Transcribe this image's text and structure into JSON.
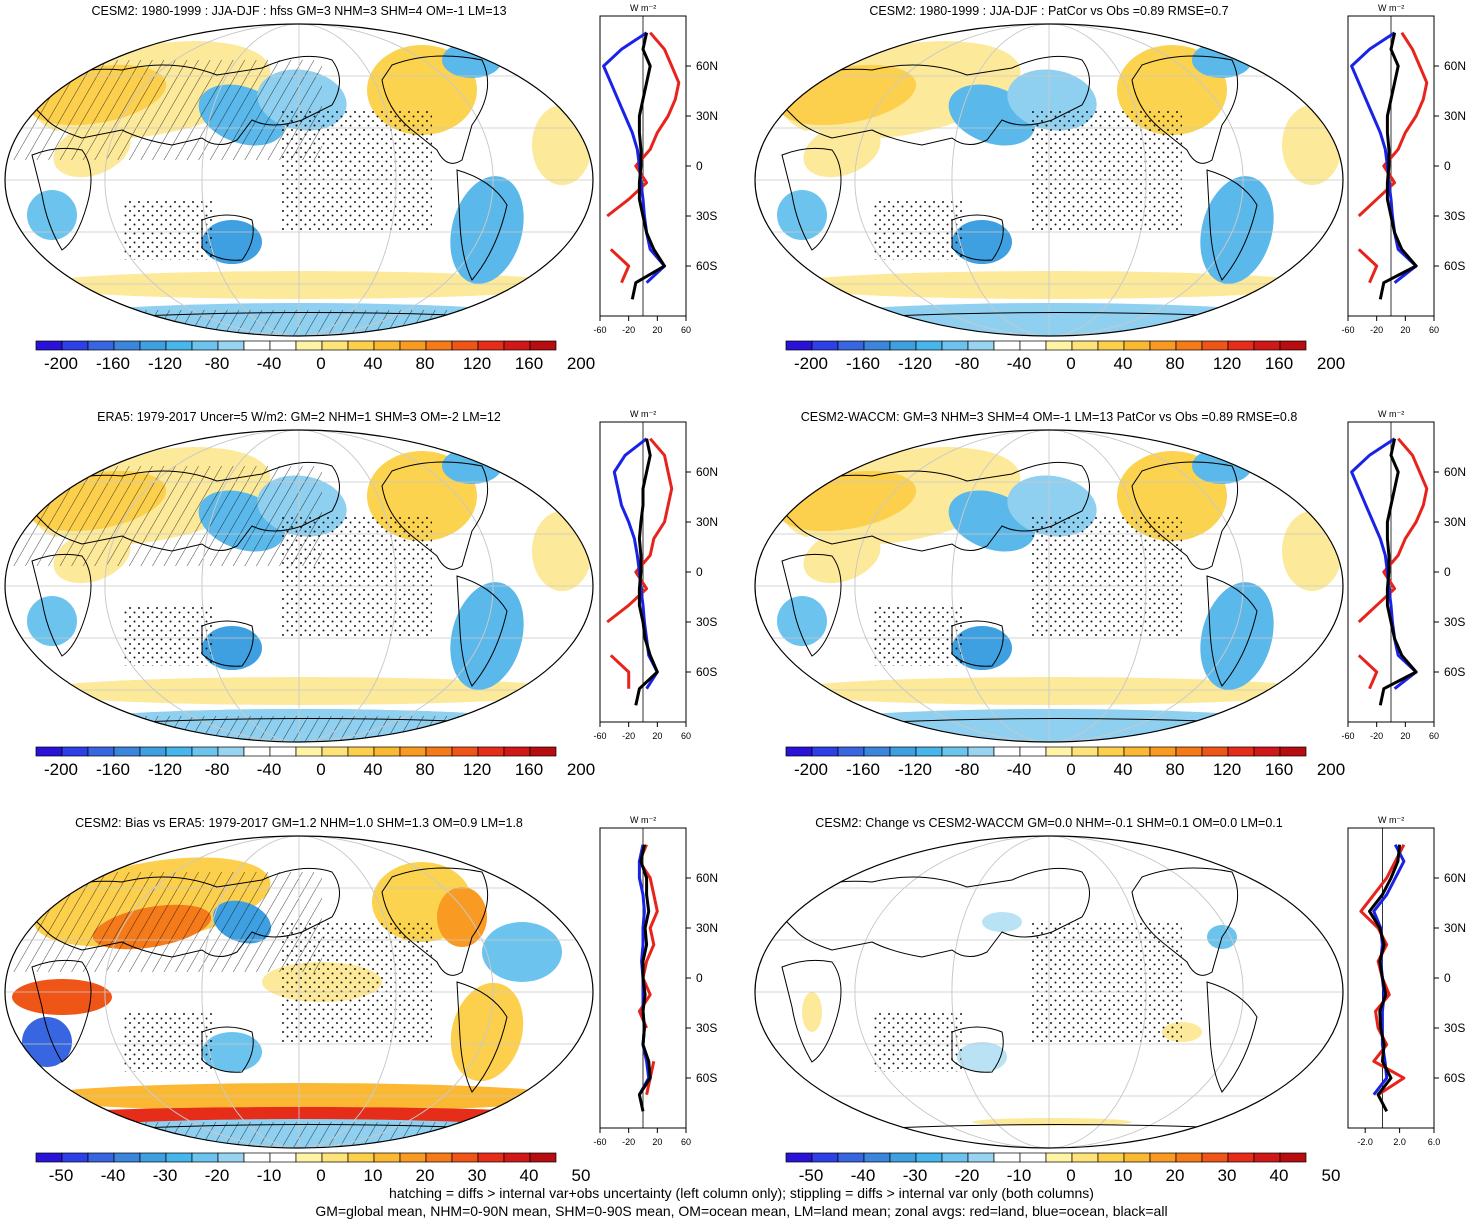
{
  "footer": {
    "line1": "hatching = diffs > internal var+obs uncertainty (left column only); stippling = diffs > internal var only (both columns)",
    "line2": "GM=global mean, NHM=0-90N mean, SHM=0-90S mean, OM=ocean mean, LM=land mean; zonal avgs: red=land, blue=ocean, black=all"
  },
  "zonal_unit": "W m⁻²",
  "lat_labels": [
    "60N",
    "30N",
    "0",
    "30S",
    "60S"
  ],
  "colorbar_colors": [
    "#2a12d8",
    "#2d3fe6",
    "#3766e0",
    "#3b86dc",
    "#3ea0e0",
    "#47b6ec",
    "#6cc4ee",
    "#98d3f0",
    "#ffffff",
    "#ffffff",
    "#fff3a6",
    "#fee27a",
    "#fcd04d",
    "#fbb933",
    "#f99a22",
    "#f57a1a",
    "#f05518",
    "#e52d1a",
    "#d01818",
    "#b70c10"
  ],
  "palette": {
    "land": "#e8231c",
    "ocean": "#1a22e8",
    "all": "#000000",
    "graticule": "#c9c9c9"
  },
  "chart_data": [
    {
      "type": "heatmap",
      "title": "CESM2: 1980-1999 : JJA-DJF : hfss GM=3 NHM=3 SHM=4 OM=-1 LM=13",
      "colorbar_ticks": [
        "-200",
        "-160",
        "-120",
        "-80",
        "-40",
        "0",
        "40",
        "80",
        "120",
        "160",
        "200"
      ],
      "overlay": {
        "hatching": true,
        "stippling": true
      },
      "zonal": {
        "x_ticks": [
          "-60",
          "-20",
          "20",
          "60"
        ],
        "xlim": [
          -60,
          60
        ],
        "ylim": [
          -90,
          90
        ],
        "lat": [
          80,
          70,
          60,
          50,
          40,
          30,
          20,
          10,
          0,
          -10,
          -20,
          -30,
          -40,
          -50,
          -60,
          -70,
          -80
        ],
        "series": [
          {
            "name": "red=land",
            "values": [
              10,
              30,
              40,
              50,
              45,
              35,
              20,
              10,
              -10,
              5,
              -20,
              -50,
              null,
              -45,
              -20,
              -30,
              null
            ]
          },
          {
            "name": "blue=ocean",
            "values": [
              5,
              -30,
              -55,
              -45,
              -35,
              -25,
              -15,
              -8,
              -5,
              -3,
              0,
              2,
              5,
              10,
              30,
              5,
              null
            ]
          },
          {
            "name": "black=all",
            "values": [
              5,
              0,
              10,
              5,
              0,
              -5,
              -5,
              -3,
              -3,
              -5,
              -5,
              0,
              5,
              15,
              30,
              -10,
              -15
            ]
          }
        ]
      }
    },
    {
      "type": "heatmap",
      "title": "CESM2: 1980-1999 : JJA-DJF : PatCor vs Obs =0.89 RMSE=0.7",
      "colorbar_ticks": [
        "-200",
        "-160",
        "-120",
        "-80",
        "-40",
        "0",
        "40",
        "80",
        "120",
        "160",
        "200"
      ],
      "overlay": {
        "hatching": false,
        "stippling": true
      },
      "zonal": {
        "x_ticks": [
          "-60",
          "-20",
          "20",
          "60"
        ],
        "xlim": [
          -60,
          60
        ],
        "ylim": [
          -90,
          90
        ],
        "lat": [
          80,
          70,
          60,
          50,
          40,
          30,
          20,
          10,
          0,
          -10,
          -20,
          -30,
          -40,
          -50,
          -60,
          -70,
          -80
        ],
        "series": [
          {
            "name": "red=land",
            "values": [
              15,
              30,
              40,
              50,
              45,
              35,
              20,
              10,
              -10,
              5,
              -20,
              -45,
              null,
              -45,
              -20,
              -30,
              null
            ]
          },
          {
            "name": "blue=ocean",
            "values": [
              5,
              -30,
              -55,
              -45,
              -35,
              -25,
              -15,
              -8,
              -5,
              -3,
              0,
              2,
              5,
              10,
              35,
              5,
              null
            ]
          },
          {
            "name": "black=all",
            "values": [
              5,
              0,
              10,
              5,
              0,
              -5,
              -5,
              -3,
              -3,
              -5,
              -5,
              0,
              5,
              15,
              35,
              -10,
              -15
            ]
          }
        ]
      }
    },
    {
      "type": "heatmap",
      "title": "ERA5: 1979-2017 Uncer=5 W/m2: GM=2 NHM=1 SHM=3 OM=-2 LM=12",
      "colorbar_ticks": [
        "-200",
        "-160",
        "-120",
        "-80",
        "-40",
        "0",
        "40",
        "80",
        "120",
        "160",
        "200"
      ],
      "overlay": {
        "hatching": true,
        "stippling": true
      },
      "zonal": {
        "x_ticks": [
          "-60",
          "-20",
          "20",
          "60"
        ],
        "xlim": [
          -60,
          60
        ],
        "ylim": [
          -90,
          90
        ],
        "lat": [
          80,
          70,
          60,
          50,
          40,
          30,
          20,
          10,
          0,
          -10,
          -20,
          -30,
          -40,
          -50,
          -60,
          -70,
          -80
        ],
        "series": [
          {
            "name": "red=land",
            "values": [
              10,
              30,
              35,
              40,
              35,
              30,
              15,
              10,
              -10,
              5,
              -20,
              -50,
              null,
              -45,
              -20,
              -20,
              null
            ]
          },
          {
            "name": "blue=ocean",
            "values": [
              5,
              -25,
              -40,
              -35,
              -30,
              -20,
              -12,
              -8,
              -5,
              -3,
              0,
              2,
              5,
              8,
              20,
              5,
              null
            ]
          },
          {
            "name": "black=all",
            "values": [
              5,
              10,
              5,
              0,
              0,
              -3,
              -5,
              -3,
              -3,
              -5,
              -5,
              0,
              3,
              10,
              20,
              -5,
              -10
            ]
          }
        ]
      }
    },
    {
      "type": "heatmap",
      "title": "CESM2-WACCM: GM=3 NHM=3 SHM=4 OM=-1 LM=13 PatCor vs Obs =0.89 RMSE=0.8",
      "colorbar_ticks": [
        "-200",
        "-160",
        "-120",
        "-80",
        "-40",
        "0",
        "40",
        "80",
        "120",
        "160",
        "200"
      ],
      "overlay": {
        "hatching": false,
        "stippling": true
      },
      "zonal": {
        "x_ticks": [
          "-60",
          "-20",
          "20",
          "60"
        ],
        "xlim": [
          -60,
          60
        ],
        "ylim": [
          -90,
          90
        ],
        "lat": [
          80,
          70,
          60,
          50,
          40,
          30,
          20,
          10,
          0,
          -10,
          -20,
          -30,
          -40,
          -50,
          -60,
          -70,
          -80
        ],
        "series": [
          {
            "name": "red=land",
            "values": [
              10,
              30,
              40,
              50,
              45,
              35,
              20,
              10,
              -10,
              5,
              -20,
              -45,
              null,
              -45,
              -20,
              -30,
              null
            ]
          },
          {
            "name": "blue=ocean",
            "values": [
              5,
              -30,
              -55,
              -45,
              -35,
              -25,
              -15,
              -8,
              -5,
              -3,
              0,
              2,
              5,
              10,
              35,
              5,
              null
            ]
          },
          {
            "name": "black=all",
            "values": [
              5,
              0,
              10,
              5,
              0,
              -5,
              -5,
              -3,
              -3,
              -5,
              -5,
              0,
              5,
              15,
              35,
              -10,
              -15
            ]
          }
        ]
      }
    },
    {
      "type": "heatmap",
      "title": "CESM2: Bias vs ERA5: 1979-2017 GM=1.2 NHM=1.0 SHM=1.3 OM=0.9 LM=1.8",
      "colorbar_ticks": [
        "-50",
        "-40",
        "-30",
        "-20",
        "-10",
        "0",
        "10",
        "20",
        "30",
        "40",
        "50"
      ],
      "overlay": {
        "hatching": true,
        "stippling": true
      },
      "zonal": {
        "x_ticks": [
          "-60",
          "-20",
          "20",
          "60"
        ],
        "xlim": [
          -60,
          60
        ],
        "ylim": [
          -90,
          90
        ],
        "lat": [
          80,
          70,
          60,
          50,
          40,
          30,
          20,
          10,
          0,
          -10,
          -20,
          -30,
          -40,
          -50,
          -60,
          -70,
          -80
        ],
        "series": [
          {
            "name": "red=land",
            "values": [
              5,
              -5,
              10,
              15,
              20,
              10,
              15,
              5,
              0,
              10,
              -5,
              5,
              null,
              15,
              10,
              5,
              null
            ]
          },
          {
            "name": "blue=ocean",
            "values": [
              0,
              -5,
              -5,
              0,
              2,
              0,
              0,
              -2,
              0,
              0,
              0,
              2,
              0,
              5,
              8,
              -5,
              null
            ]
          },
          {
            "name": "black=all",
            "values": [
              2,
              -3,
              5,
              5,
              8,
              3,
              5,
              0,
              0,
              3,
              0,
              2,
              0,
              8,
              10,
              -5,
              0
            ]
          }
        ]
      }
    },
    {
      "type": "heatmap",
      "title": "CESM2: Change vs CESM2-WACCM GM=0.0 NHM=-0.1 SHM=0.1 OM=0.0 LM=0.1",
      "colorbar_ticks": [
        "-50",
        "-40",
        "-30",
        "-20",
        "-10",
        "0",
        "10",
        "20",
        "30",
        "40",
        "50"
      ],
      "overlay": {
        "hatching": false,
        "stippling": true
      },
      "zonal": {
        "x_ticks": [
          "-2.0",
          "2.0",
          "6.0"
        ],
        "xlim": [
          -4,
          6
        ],
        "ylim": [
          -90,
          90
        ],
        "lat": [
          80,
          70,
          60,
          50,
          40,
          30,
          20,
          10,
          0,
          -10,
          -20,
          -30,
          -40,
          -50,
          -60,
          -70,
          -80
        ],
        "series": [
          {
            "name": "red=land",
            "values": [
              2.5,
              1.5,
              0.5,
              -1.0,
              -2.5,
              -0.5,
              0.5,
              -0.5,
              0.0,
              0.8,
              -0.8,
              -0.5,
              0.5,
              -1.0,
              2.5,
              -0.5,
              null
            ]
          },
          {
            "name": "blue=ocean",
            "values": [
              1.5,
              2.5,
              1.5,
              0.5,
              -1.0,
              -0.2,
              0.0,
              -0.2,
              0.0,
              0.2,
              0.0,
              0.0,
              0.0,
              0.3,
              0.5,
              -1.0,
              null
            ]
          },
          {
            "name": "black=all",
            "values": [
              2.0,
              1.8,
              1.0,
              0.0,
              -1.5,
              -0.3,
              0.2,
              -0.3,
              0.0,
              0.4,
              -0.3,
              -0.2,
              0.2,
              0.0,
              1.0,
              -0.5,
              0.5
            ]
          }
        ]
      }
    }
  ]
}
